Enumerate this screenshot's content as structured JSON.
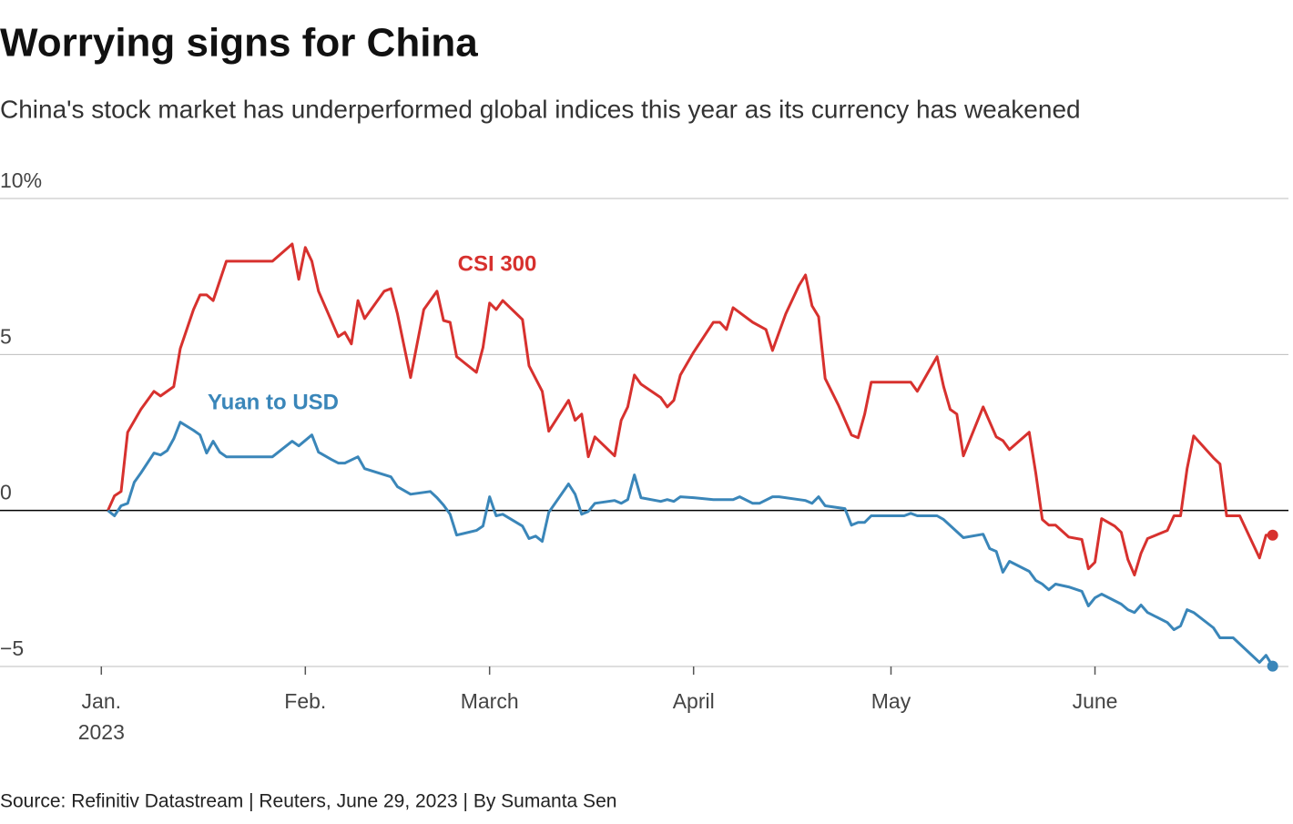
{
  "chart_data": {
    "type": "line",
    "title": "Worrying signs for China",
    "subtitle": "China's stock market has underperformed global indices this year as its currency has weakened",
    "source": "Source: Refinitiv Datastream | Reuters, June 29, 2023 | By Sumanta Sen",
    "annotations": [
      "CSI 300",
      "Yuan to USD"
    ],
    "x_year_label": "2023",
    "xlim": [
      -15.4,
      180.4
    ],
    "xticks": [
      {
        "value": 0,
        "label": "Jan."
      },
      {
        "value": 31,
        "label": "Feb."
      },
      {
        "value": 59,
        "label": "March"
      },
      {
        "value": 90,
        "label": "April"
      },
      {
        "value": 120,
        "label": "May"
      },
      {
        "value": 151,
        "label": "June"
      }
    ],
    "ylim": [
      -5,
      10
    ],
    "yticks": [
      {
        "value": 10,
        "label": "10%"
      },
      5,
      0,
      {
        "value": -5,
        "label": "−5"
      }
    ],
    "grid": true,
    "series": [
      {
        "name": "CSI 300",
        "color": "#d7312e",
        "x": [
          1,
          2,
          3,
          4,
          6,
          8,
          9,
          11,
          12,
          14,
          15,
          16,
          17,
          19,
          26,
          29,
          30,
          31,
          32,
          33,
          36,
          37,
          38,
          39,
          40,
          43,
          44,
          45,
          47,
          49,
          51,
          52,
          53,
          54,
          57,
          58,
          59,
          60,
          61,
          64,
          65,
          67,
          68,
          71,
          72,
          73,
          74,
          75,
          78,
          79,
          80,
          81,
          82,
          85,
          86,
          87,
          88,
          90,
          93,
          94,
          95,
          96,
          99,
          101,
          102,
          104,
          106,
          107,
          108,
          109,
          110,
          112,
          114,
          115,
          116,
          117,
          123,
          124,
          127,
          128,
          129,
          130,
          131,
          134,
          136,
          137,
          138,
          141,
          142,
          143,
          144,
          145,
          147,
          149,
          150,
          151,
          152,
          154,
          155,
          156,
          157,
          158,
          159,
          162,
          163,
          164,
          165,
          166,
          169,
          170,
          171,
          173,
          176,
          177,
          178
        ],
        "values": [
          0,
          0.47,
          0.61,
          2.51,
          3.24,
          3.82,
          3.67,
          3.97,
          5.19,
          6.44,
          6.91,
          6.91,
          6.73,
          7.99,
          7.99,
          8.54,
          7.41,
          8.43,
          7.99,
          7.03,
          5.57,
          5.71,
          5.34,
          6.73,
          6.15,
          7.03,
          7.11,
          6.3,
          4.26,
          6.44,
          7.03,
          6.09,
          6.03,
          4.93,
          4.43,
          5.22,
          6.65,
          6.44,
          6.73,
          6.12,
          4.64,
          3.82,
          2.54,
          3.53,
          2.89,
          3.09,
          1.72,
          2.36,
          1.75,
          2.89,
          3.32,
          4.34,
          4.05,
          3.62,
          3.32,
          3.53,
          4.34,
          5.07,
          6.03,
          6.03,
          5.8,
          6.5,
          6.03,
          5.8,
          5.13,
          6.3,
          7.2,
          7.55,
          6.56,
          6.21,
          4.23,
          3.38,
          2.42,
          2.33,
          3.09,
          4.11,
          4.11,
          3.82,
          4.93,
          3.97,
          3.24,
          3.09,
          1.75,
          3.32,
          2.36,
          2.24,
          1.95,
          2.51,
          1.2,
          -0.29,
          -0.47,
          -0.47,
          -0.85,
          -0.93,
          -1.87,
          -1.66,
          -0.26,
          -0.5,
          -0.7,
          -1.57,
          -2.07,
          -1.37,
          -0.9,
          -0.64,
          -0.17,
          -0.17,
          1.34,
          2.39,
          1.69,
          1.49,
          -0.17,
          -0.17,
          -1.52,
          -0.79,
          -0.79
        ]
      },
      {
        "name": "Yuan to USD",
        "color": "#3a86b9",
        "x": [
          1,
          2,
          3,
          4,
          5,
          6,
          8,
          9,
          10,
          11,
          12,
          14,
          15,
          16,
          17,
          18,
          19,
          26,
          29,
          30,
          32,
          33,
          35,
          36,
          37,
          39,
          40,
          44,
          45,
          47,
          50,
          51,
          52,
          53,
          54,
          57,
          58,
          59,
          60,
          61,
          64,
          65,
          66,
          67,
          68,
          71,
          72,
          73,
          74,
          75,
          78,
          79,
          80,
          81,
          82,
          85,
          86,
          87,
          88,
          90,
          93,
          96,
          97,
          99,
          100,
          102,
          103,
          106,
          107,
          108,
          109,
          110,
          113,
          114,
          115,
          116,
          117,
          122,
          123,
          124,
          127,
          128,
          131,
          134,
          135,
          136,
          137,
          138,
          141,
          142,
          143,
          144,
          145,
          147,
          149,
          150,
          151,
          152,
          155,
          156,
          157,
          158,
          159,
          162,
          163,
          164,
          165,
          166,
          169,
          170,
          172,
          176,
          177,
          178
        ],
        "values": [
          0,
          -0.17,
          0.15,
          0.23,
          0.9,
          1.2,
          1.84,
          1.78,
          1.92,
          2.3,
          2.83,
          2.57,
          2.42,
          1.84,
          2.22,
          1.87,
          1.72,
          1.72,
          2.22,
          2.07,
          2.42,
          1.87,
          1.63,
          1.52,
          1.52,
          1.72,
          1.34,
          1.08,
          0.76,
          0.52,
          0.61,
          0.41,
          0.17,
          -0.12,
          -0.79,
          -0.64,
          -0.5,
          0.44,
          -0.17,
          -0.12,
          -0.5,
          -0.9,
          -0.82,
          -0.99,
          -0.06,
          0.85,
          0.52,
          -0.12,
          -0.03,
          0.23,
          0.32,
          0.23,
          0.35,
          1.14,
          0.41,
          0.29,
          0.35,
          0.29,
          0.44,
          0.41,
          0.35,
          0.35,
          0.44,
          0.23,
          0.23,
          0.44,
          0.44,
          0.35,
          0.32,
          0.23,
          0.44,
          0.15,
          0.06,
          -0.47,
          -0.38,
          -0.38,
          -0.17,
          -0.17,
          -0.09,
          -0.17,
          -0.17,
          -0.29,
          -0.87,
          -0.76,
          -1.22,
          -1.31,
          -1.98,
          -1.63,
          -1.95,
          -2.24,
          -2.36,
          -2.54,
          -2.36,
          -2.45,
          -2.59,
          -3.06,
          -2.8,
          -2.68,
          -3.0,
          -3.18,
          -3.27,
          -3.03,
          -3.27,
          -3.59,
          -3.82,
          -3.7,
          -3.18,
          -3.27,
          -3.76,
          -4.08,
          -4.08,
          -4.87,
          -4.64,
          -4.99
        ]
      }
    ]
  }
}
